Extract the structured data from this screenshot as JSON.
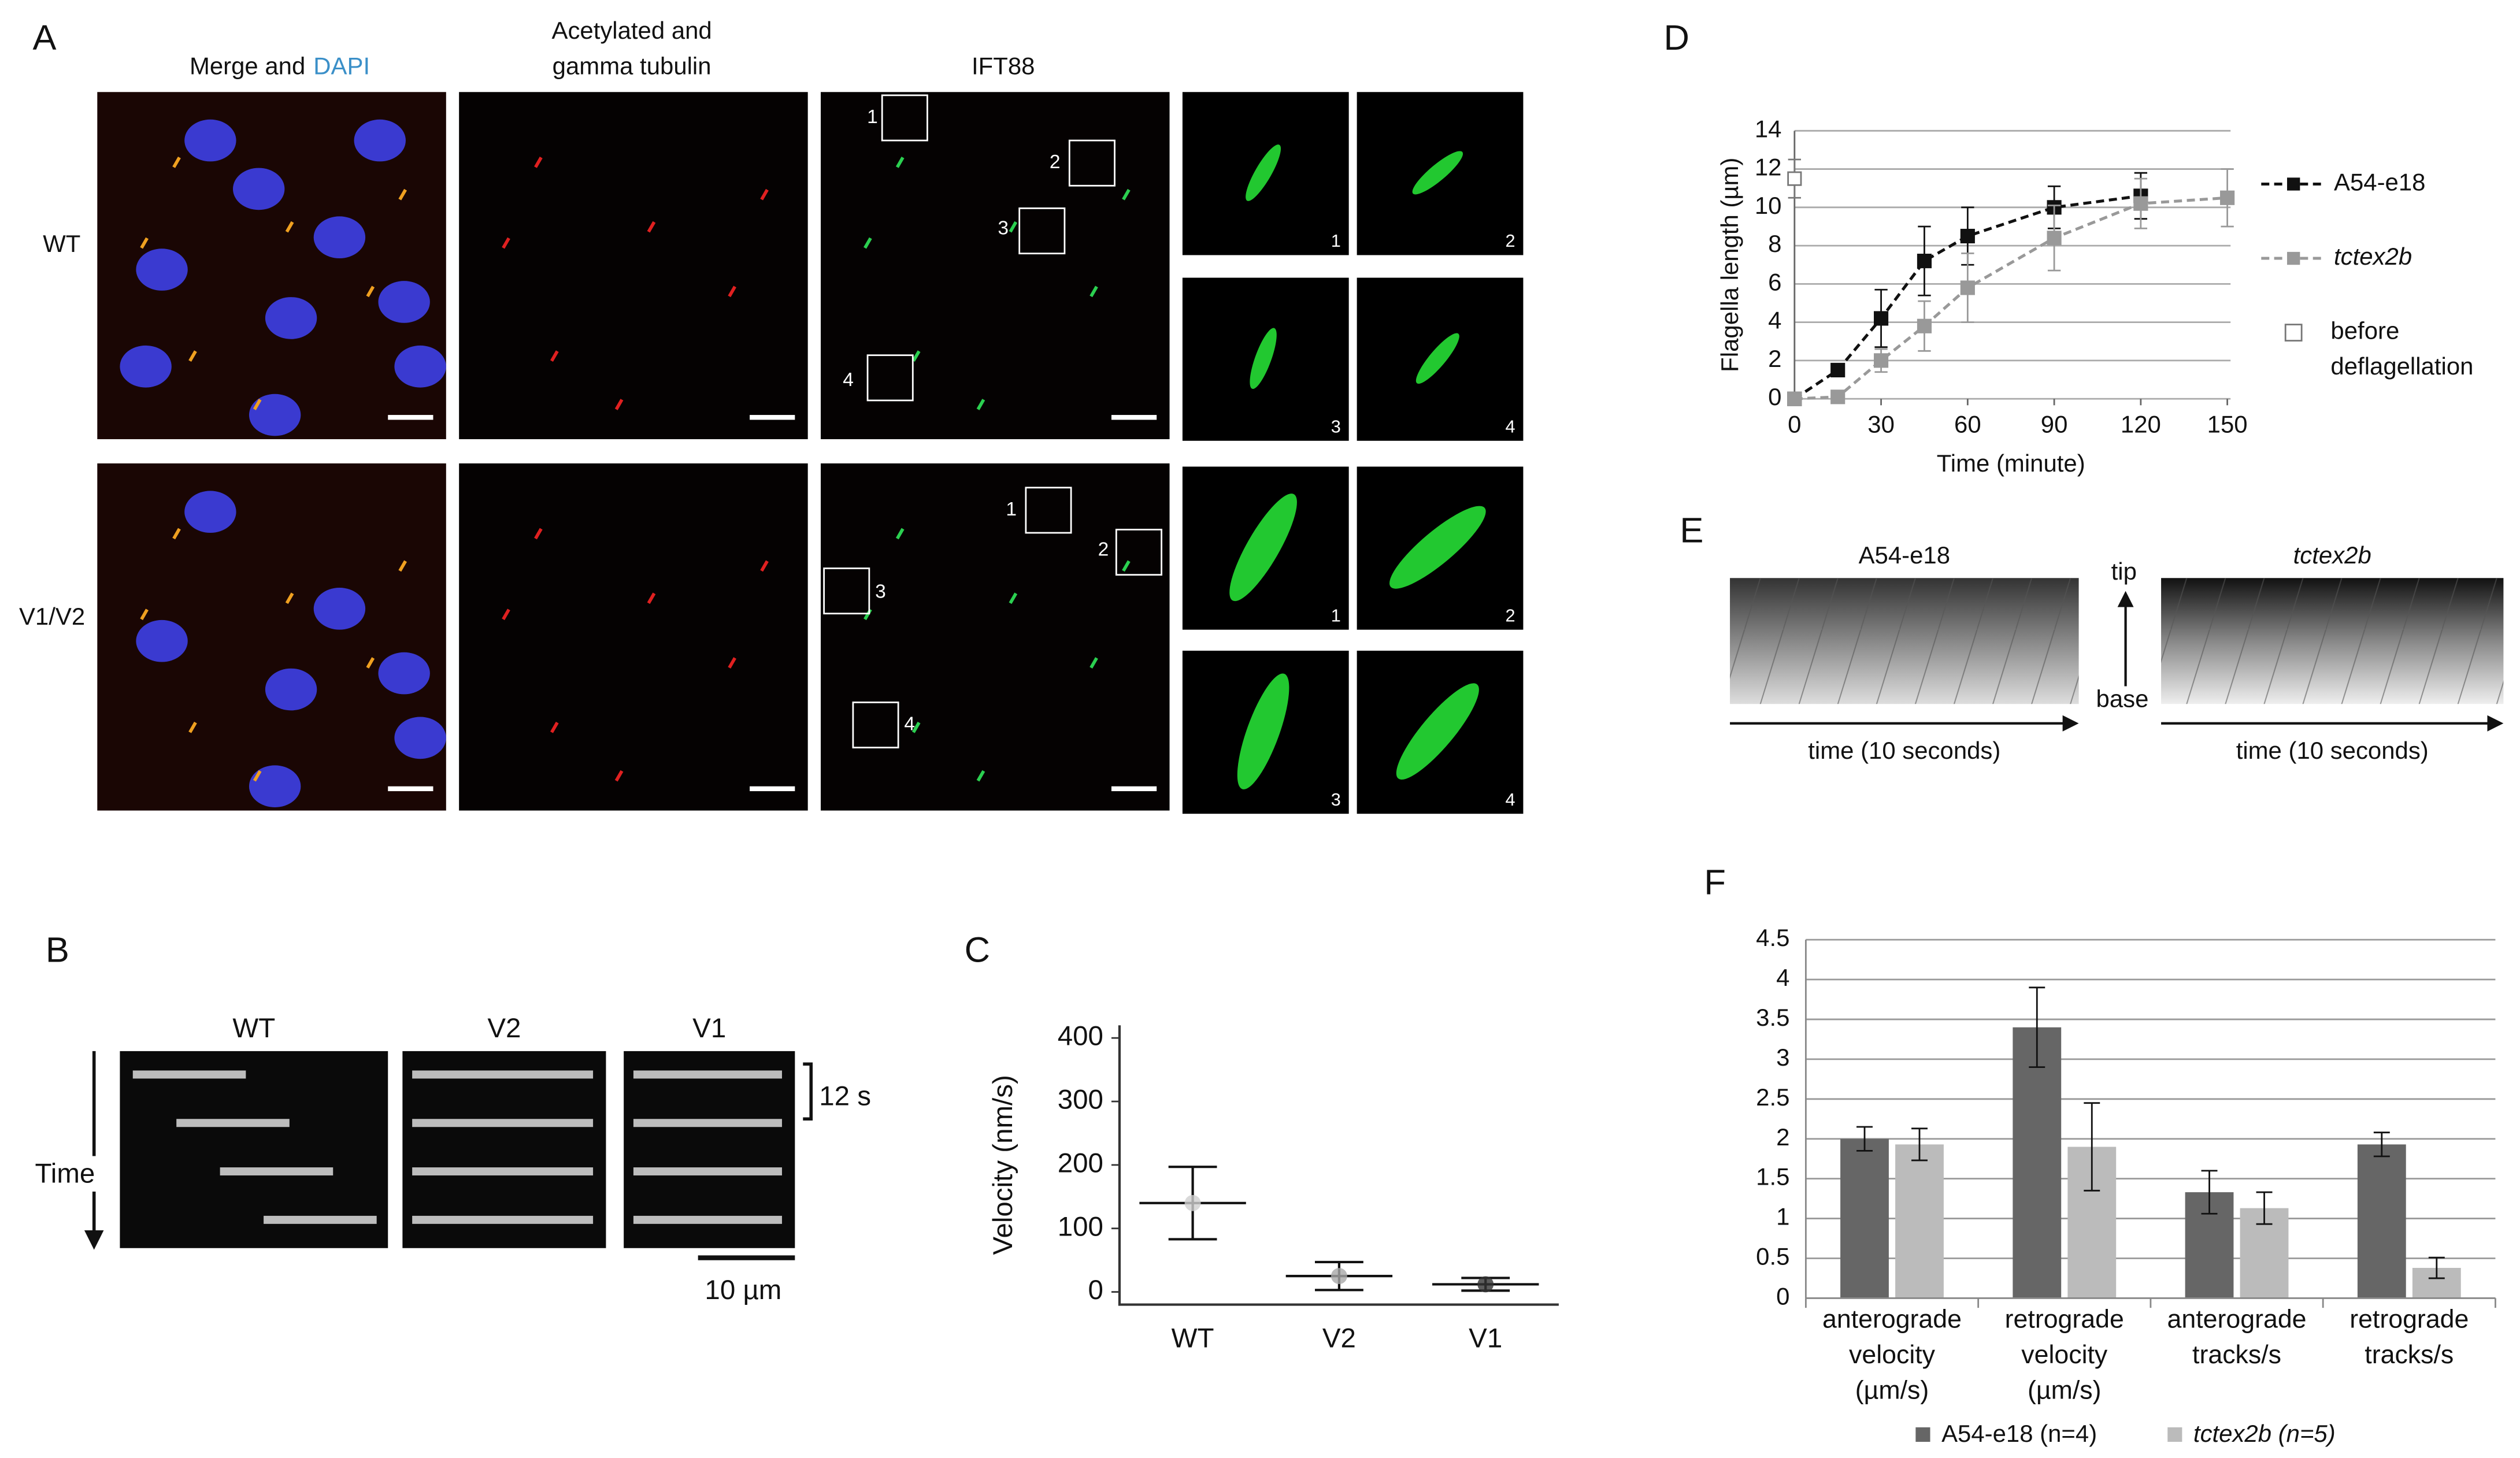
{
  "panel_labels": [
    "A",
    "B",
    "C",
    "D",
    "E",
    "F"
  ],
  "panel_a": {
    "merge": "Merge and",
    "dapi": "DAPI",
    "tubulin": [
      "Acetylated and",
      "gamma tubulin"
    ],
    "ift88": "IFT88",
    "rows": [
      "WT",
      "V1/V2"
    ],
    "insets": [
      "1",
      "2",
      "3",
      "4"
    ]
  },
  "panel_b": {
    "columns": [
      "WT",
      "V2",
      "V1"
    ],
    "time_scale": "12 s",
    "axis": "Time",
    "scale_bar": "10 µm"
  },
  "panel_e": {
    "columns": [
      "A54-e18",
      "tctex2b"
    ],
    "tip": "tip",
    "base": "base",
    "time_label": "time (10 seconds)"
  },
  "chart_data": [
    {
      "type": "line",
      "x_label": "Time (minute)",
      "y_label": "Flagella length (µm)",
      "x": [
        0,
        15,
        30,
        45,
        60,
        90,
        120,
        150
      ],
      "xlim": [
        0,
        150
      ],
      "xticks": [
        0,
        30,
        60,
        90,
        120,
        150
      ],
      "ylim": [
        0,
        14
      ],
      "yticks": [
        0,
        2,
        4,
        6,
        8,
        10,
        12,
        14
      ],
      "grid": true,
      "series": [
        {
          "name": "A54-e18",
          "color": "#111111",
          "line_style": "dashed",
          "values": [
            0,
            1.5,
            4.2,
            7.2,
            8.5,
            10,
            10.6,
            null
          ],
          "errors": [
            0,
            0.3,
            1.5,
            1.8,
            1.5,
            1.1,
            1.2,
            null
          ]
        },
        {
          "name": "tctex2b",
          "color": "#999999",
          "line_style": "dashed",
          "values": [
            0,
            0.1,
            2,
            3.8,
            5.8,
            8.4,
            10.2,
            10.5
          ],
          "errors": [
            0,
            0.3,
            0.6,
            1.3,
            1.8,
            1.7,
            1.3,
            1.5
          ]
        },
        {
          "name": "before deflagellation",
          "color": "#777777",
          "line_style": "none",
          "open": true,
          "values": [
            11.5,
            null,
            null,
            null,
            null,
            null,
            null,
            null
          ],
          "errors": [
            1,
            null,
            null,
            null,
            null,
            null,
            null,
            null
          ]
        }
      ]
    },
    {
      "type": "dot",
      "y_label": "Velocity (nm/s)",
      "categories": [
        "WT",
        "V2",
        "V1"
      ],
      "values": [
        140,
        25,
        12
      ],
      "errors": [
        57,
        22,
        10
      ],
      "colors": [
        "#d0d0d0",
        "#a8a8a8",
        "#333333"
      ],
      "ylim": [
        -20,
        420
      ],
      "yticks": [
        0,
        100,
        200,
        300,
        400
      ]
    },
    {
      "type": "bar",
      "categories": [
        [
          "anterograde",
          "velocity",
          "(µm/s)"
        ],
        [
          "retrograde",
          "velocity",
          "(µm/s)"
        ],
        [
          "anterograde",
          "tracks/s"
        ],
        [
          "retrograde",
          "tracks/s"
        ]
      ],
      "ylim": [
        0,
        4.5
      ],
      "yticks": [
        0,
        0.5,
        1,
        1.5,
        2,
        2.5,
        3,
        3.5,
        4,
        4.5
      ],
      "grid": true,
      "series": [
        {
          "name": "A54-e18 (n=4)",
          "color": "#666666",
          "values": [
            2.0,
            3.4,
            1.33,
            1.93
          ],
          "errors": [
            0.15,
            0.5,
            0.27,
            0.15
          ]
        },
        {
          "name": "tctex2b (n=5)",
          "color": "#bbbbbb",
          "values": [
            1.93,
            1.9,
            1.13,
            0.38
          ],
          "errors": [
            0.2,
            0.55,
            0.2,
            0.13
          ]
        }
      ]
    }
  ]
}
